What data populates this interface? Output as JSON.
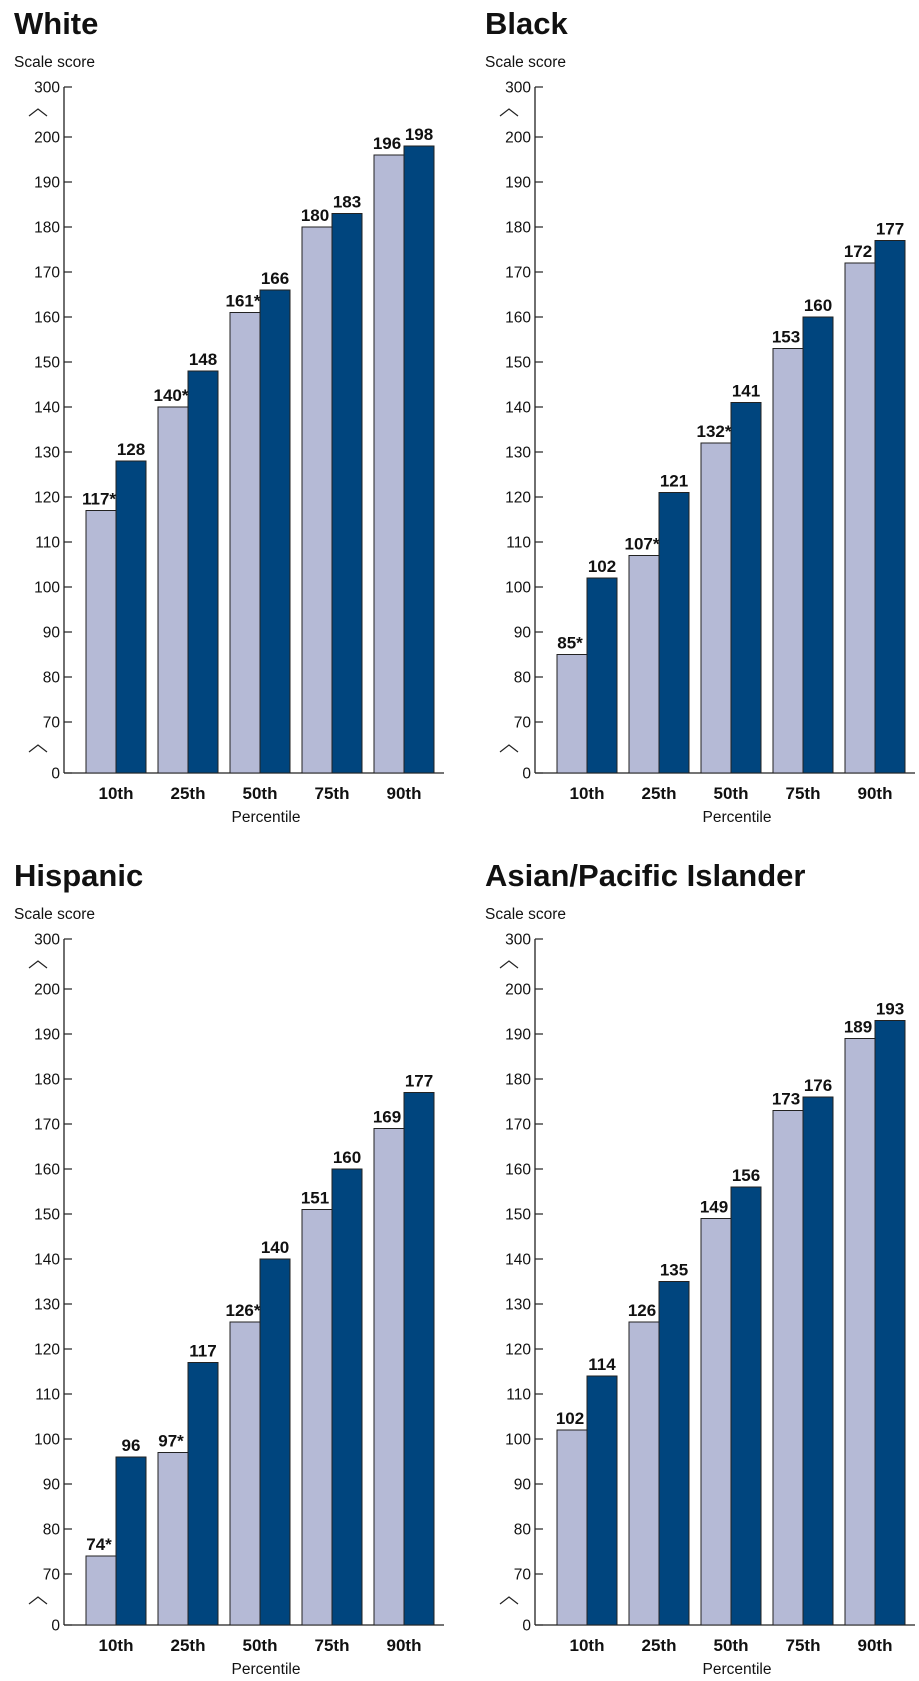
{
  "colors": {
    "series_1": "#b5bad6",
    "series_2": "#00457e",
    "axis": "#222222"
  },
  "chart_data": [
    {
      "type": "bar",
      "title": "White",
      "ylabel": "Scale score",
      "xlabel": "Percentile",
      "categories": [
        "10th",
        "25th",
        "50th",
        "75th",
        "90th"
      ],
      "yticks": [
        "0",
        "70",
        "80",
        "90",
        "100",
        "110",
        "120",
        "130",
        "140",
        "150",
        "160",
        "170",
        "180",
        "190",
        "200",
        "300"
      ],
      "axis_break": true,
      "series": [
        {
          "values": [
            117,
            140,
            161,
            180,
            196
          ],
          "labels": [
            "117*",
            "140*",
            "161*",
            "180",
            "196"
          ]
        },
        {
          "values": [
            128,
            148,
            166,
            183,
            198
          ],
          "labels": [
            "128",
            "148",
            "166",
            "183",
            "198"
          ]
        }
      ]
    },
    {
      "type": "bar",
      "title": "Black",
      "ylabel": "Scale score",
      "xlabel": "Percentile",
      "categories": [
        "10th",
        "25th",
        "50th",
        "75th",
        "90th"
      ],
      "yticks": [
        "0",
        "70",
        "80",
        "90",
        "100",
        "110",
        "120",
        "130",
        "140",
        "150",
        "160",
        "170",
        "180",
        "190",
        "200",
        "300"
      ],
      "axis_break": true,
      "series": [
        {
          "values": [
            85,
            107,
            132,
            153,
            172
          ],
          "labels": [
            "85*",
            "107*",
            "132*",
            "153",
            "172"
          ]
        },
        {
          "values": [
            102,
            121,
            141,
            160,
            177
          ],
          "labels": [
            "102",
            "121",
            "141",
            "160",
            "177"
          ]
        }
      ]
    },
    {
      "type": "bar",
      "title": "Hispanic",
      "ylabel": "Scale score",
      "xlabel": "Percentile",
      "categories": [
        "10th",
        "25th",
        "50th",
        "75th",
        "90th"
      ],
      "yticks": [
        "0",
        "70",
        "80",
        "90",
        "100",
        "110",
        "120",
        "130",
        "140",
        "150",
        "160",
        "170",
        "180",
        "190",
        "200",
        "300"
      ],
      "axis_break": true,
      "series": [
        {
          "values": [
            74,
            97,
            126,
            151,
            169
          ],
          "labels": [
            "74*",
            "97*",
            "126*",
            "151",
            "169"
          ]
        },
        {
          "values": [
            96,
            117,
            140,
            160,
            177
          ],
          "labels": [
            "96",
            "117",
            "140",
            "160",
            "177"
          ]
        }
      ]
    },
    {
      "type": "bar",
      "title": "Asian/Pacific Islander",
      "ylabel": "Scale score",
      "xlabel": "Percentile",
      "categories": [
        "10th",
        "25th",
        "50th",
        "75th",
        "90th"
      ],
      "yticks": [
        "0",
        "70",
        "80",
        "90",
        "100",
        "110",
        "120",
        "130",
        "140",
        "150",
        "160",
        "170",
        "180",
        "190",
        "200",
        "300"
      ],
      "axis_break": true,
      "series": [
        {
          "values": [
            102,
            126,
            149,
            173,
            189
          ],
          "labels": [
            "102",
            "126",
            "149",
            "173",
            "189"
          ]
        },
        {
          "values": [
            114,
            135,
            156,
            176,
            193
          ],
          "labels": [
            "114",
            "135",
            "156",
            "176",
            "193"
          ]
        }
      ]
    }
  ]
}
